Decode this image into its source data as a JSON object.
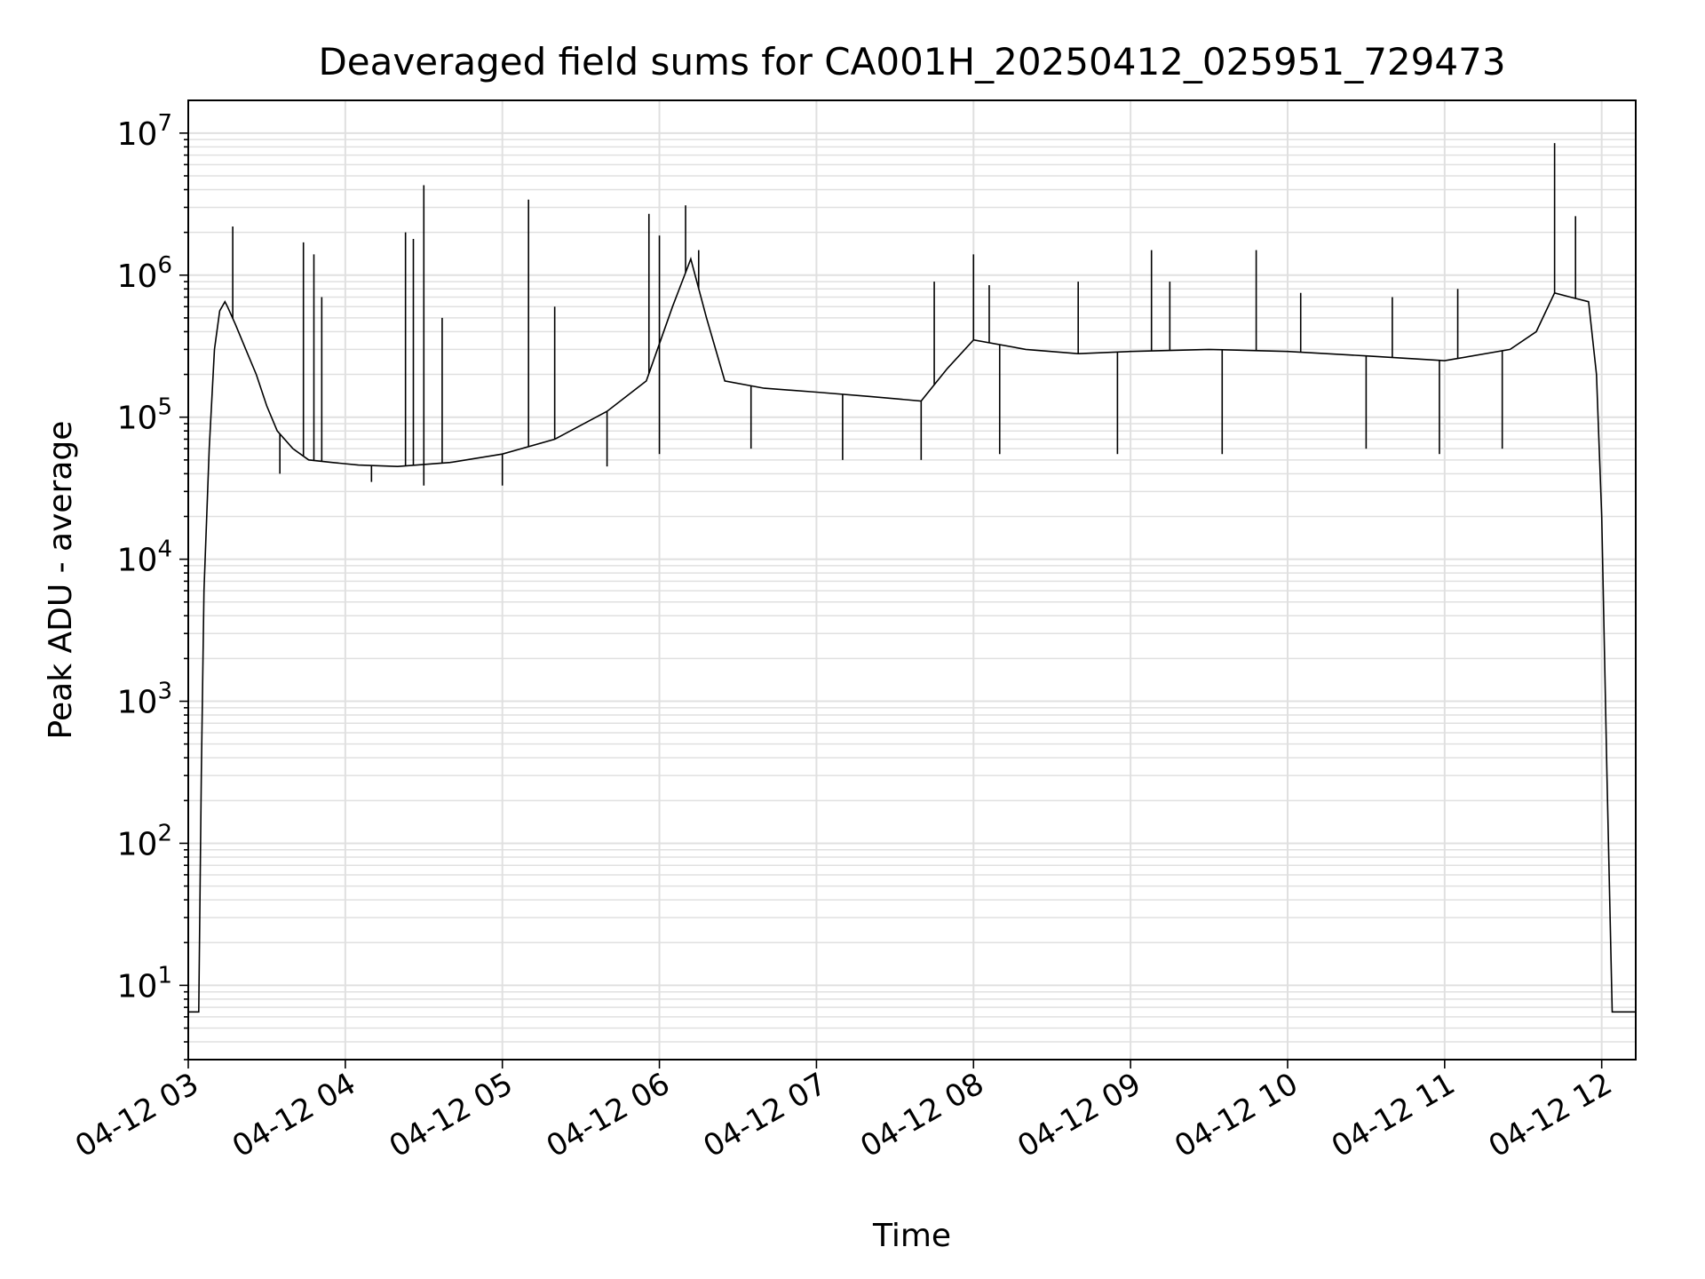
{
  "chart_data": {
    "type": "line",
    "title": "Deaveraged field sums for CA001H_20250412_025951_729473",
    "xlabel": "Time",
    "ylabel": "Peak ADU - average",
    "yscale": "log",
    "ylim": [
      3,
      17000000
    ],
    "xlim": [
      "2025-04-12 03:00",
      "2025-04-12 12:13"
    ],
    "grid": true,
    "grid_minor": true,
    "line_color": "#000000",
    "grid_color": "#e0e0e0",
    "x_tick_labels": [
      "04-12 03",
      "04-12 04",
      "04-12 05",
      "04-12 06",
      "04-12 07",
      "04-12 08",
      "04-12 09",
      "04-12 10",
      "04-12 11",
      "04-12 12"
    ],
    "x_tick_times": [
      "2025-04-12 03:00",
      "2025-04-12 04:00",
      "2025-04-12 05:00",
      "2025-04-12 06:00",
      "2025-04-12 07:00",
      "2025-04-12 08:00",
      "2025-04-12 09:00",
      "2025-04-12 10:00",
      "2025-04-12 11:00",
      "2025-04-12 12:00"
    ],
    "y_ticks": [
      {
        "value": 10,
        "base": "10",
        "exp": "1"
      },
      {
        "value": 100,
        "base": "10",
        "exp": "2"
      },
      {
        "value": 1000,
        "base": "10",
        "exp": "3"
      },
      {
        "value": 10000,
        "base": "10",
        "exp": "4"
      },
      {
        "value": 100000,
        "base": "10",
        "exp": "5"
      },
      {
        "value": 1000000,
        "base": "10",
        "exp": "6"
      },
      {
        "value": 10000000,
        "base": "10",
        "exp": "7"
      }
    ],
    "series": [
      {
        "x": [
          "2025-04-12 03:00",
          "2025-04-12 03:04",
          "2025-04-12 03:05",
          "2025-04-12 03:06",
          "2025-04-12 03:08",
          "2025-04-12 03:10",
          "2025-04-12 03:12",
          "2025-04-12 03:14",
          "2025-04-12 03:15",
          "2025-04-12 03:18",
          "2025-04-12 03:22",
          "2025-04-12 03:26",
          "2025-04-12 03:30",
          "2025-04-12 03:34",
          "2025-04-12 03:40",
          "2025-04-12 03:46",
          "2025-04-12 03:55",
          "2025-04-12 04:05",
          "2025-04-12 04:20",
          "2025-04-12 04:40",
          "2025-04-12 05:00",
          "2025-04-12 05:20",
          "2025-04-12 05:40",
          "2025-04-12 05:55",
          "2025-04-12 06:05",
          "2025-04-12 06:12",
          "2025-04-12 06:18",
          "2025-04-12 06:25",
          "2025-04-12 06:40",
          "2025-04-12 07:00",
          "2025-04-12 07:20",
          "2025-04-12 07:40",
          "2025-04-12 07:50",
          "2025-04-12 08:00",
          "2025-04-12 08:20",
          "2025-04-12 08:40",
          "2025-04-12 09:00",
          "2025-04-12 09:30",
          "2025-04-12 10:00",
          "2025-04-12 10:30",
          "2025-04-12 11:00",
          "2025-04-12 11:25",
          "2025-04-12 11:35",
          "2025-04-12 11:42",
          "2025-04-12 11:48",
          "2025-04-12 11:55",
          "2025-04-12 11:58",
          "2025-04-12 12:00",
          "2025-04-12 12:02",
          "2025-04-12 12:04",
          "2025-04-12 12:05",
          "2025-04-12 12:13"
        ],
        "y": [
          6.5,
          6.5,
          300,
          6000,
          60000,
          300000,
          560000,
          650000,
          600000,
          450000,
          300000,
          200000,
          120000,
          80000,
          60000,
          50000,
          48000,
          46000,
          45000,
          48000,
          55000,
          70000,
          110000,
          180000,
          600000,
          1300000,
          500000,
          180000,
          160000,
          150000,
          140000,
          130000,
          220000,
          350000,
          300000,
          280000,
          290000,
          300000,
          290000,
          270000,
          250000,
          300000,
          400000,
          750000,
          700000,
          650000,
          200000,
          20000,
          300,
          6.5,
          6.5,
          6.5
        ]
      }
    ],
    "spikes": [
      {
        "x": "2025-04-12 03:17",
        "y": 2200000
      },
      {
        "x": "2025-04-12 03:44",
        "y": 1700000
      },
      {
        "x": "2025-04-12 03:48",
        "y": 1400000
      },
      {
        "x": "2025-04-12 03:51",
        "y": 700000
      },
      {
        "x": "2025-04-12 04:23",
        "y": 2000000
      },
      {
        "x": "2025-04-12 04:26",
        "y": 1800000
      },
      {
        "x": "2025-04-12 04:30",
        "y": 4300000
      },
      {
        "x": "2025-04-12 04:37",
        "y": 500000
      },
      {
        "x": "2025-04-12 05:10",
        "y": 3400000
      },
      {
        "x": "2025-04-12 05:20",
        "y": 600000
      },
      {
        "x": "2025-04-12 05:56",
        "y": 2700000
      },
      {
        "x": "2025-04-12 06:00",
        "y": 1900000
      },
      {
        "x": "2025-04-12 06:10",
        "y": 3100000
      },
      {
        "x": "2025-04-12 06:15",
        "y": 1500000
      },
      {
        "x": "2025-04-12 07:45",
        "y": 900000
      },
      {
        "x": "2025-04-12 08:00",
        "y": 1400000
      },
      {
        "x": "2025-04-12 08:06",
        "y": 850000
      },
      {
        "x": "2025-04-12 08:40",
        "y": 900000
      },
      {
        "x": "2025-04-12 09:08",
        "y": 1500000
      },
      {
        "x": "2025-04-12 09:15",
        "y": 900000
      },
      {
        "x": "2025-04-12 09:48",
        "y": 1500000
      },
      {
        "x": "2025-04-12 10:05",
        "y": 750000
      },
      {
        "x": "2025-04-12 10:40",
        "y": 700000
      },
      {
        "x": "2025-04-12 11:05",
        "y": 800000
      },
      {
        "x": "2025-04-12 11:42",
        "y": 8500000
      },
      {
        "x": "2025-04-12 11:50",
        "y": 2600000
      }
    ],
    "dips": [
      {
        "x": "2025-04-12 03:35",
        "y": 40000
      },
      {
        "x": "2025-04-12 04:10",
        "y": 35000
      },
      {
        "x": "2025-04-12 04:30",
        "y": 33000
      },
      {
        "x": "2025-04-12 05:00",
        "y": 33000
      },
      {
        "x": "2025-04-12 05:40",
        "y": 45000
      },
      {
        "x": "2025-04-12 06:00",
        "y": 55000
      },
      {
        "x": "2025-04-12 06:35",
        "y": 60000
      },
      {
        "x": "2025-04-12 07:10",
        "y": 50000
      },
      {
        "x": "2025-04-12 07:40",
        "y": 50000
      },
      {
        "x": "2025-04-12 08:10",
        "y": 55000
      },
      {
        "x": "2025-04-12 08:55",
        "y": 55000
      },
      {
        "x": "2025-04-12 09:35",
        "y": 55000
      },
      {
        "x": "2025-04-12 10:30",
        "y": 60000
      },
      {
        "x": "2025-04-12 10:58",
        "y": 55000
      },
      {
        "x": "2025-04-12 11:22",
        "y": 60000
      }
    ]
  }
}
